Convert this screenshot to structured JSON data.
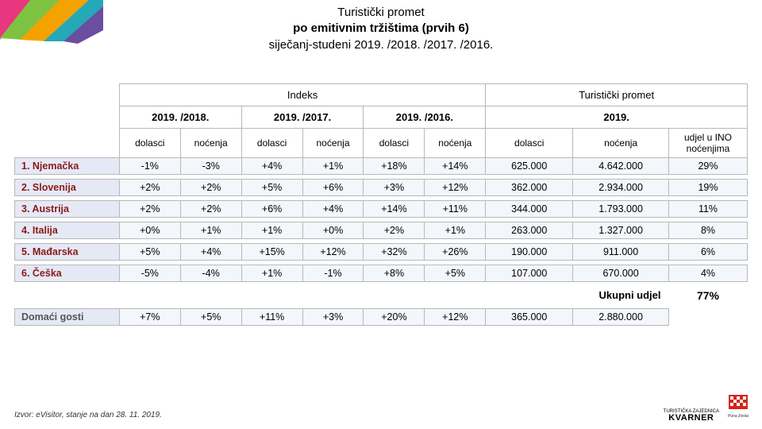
{
  "title": {
    "line1": "Turistički promet",
    "line2": "po emitivnim tržištima (prvih 6)",
    "line3": "siječanj-studeni 2019. /2018. /2017. /2016."
  },
  "headers": {
    "group_index": "Indeks",
    "group_promet": "Turistički promet",
    "year_18": "2019. /2018.",
    "year_17": "2019. /2017.",
    "year_16": "2019. /2016.",
    "year_abs": "2019.",
    "dolasci": "dolasci",
    "nocenja": "noćenja",
    "udjel": "udjel u INO noćenjima"
  },
  "rows": [
    {
      "country": "1. Njemačka",
      "d18": "-1%",
      "n18": "-3%",
      "d17": "+4%",
      "n17": "+1%",
      "d16": "+18%",
      "n16": "+14%",
      "dol": "625.000",
      "noc": "4.642.000",
      "udj": "29%"
    },
    {
      "country": "2. Slovenija",
      "d18": "+2%",
      "n18": "+2%",
      "d17": "+5%",
      "n17": "+6%",
      "d16": "+3%",
      "n16": "+12%",
      "dol": "362.000",
      "noc": "2.934.000",
      "udj": "19%"
    },
    {
      "country": "3. Austrija",
      "d18": "+2%",
      "n18": "+2%",
      "d17": "+6%",
      "n17": "+4%",
      "d16": "+14%",
      "n16": "+11%",
      "dol": "344.000",
      "noc": "1.793.000",
      "udj": "11%"
    },
    {
      "country": "4. Italija",
      "d18": "+0%",
      "n18": "+1%",
      "d17": "+1%",
      "n17": "+0%",
      "d16": "+2%",
      "n16": "+1%",
      "dol": "263.000",
      "noc": "1.327.000",
      "udj": "8%"
    },
    {
      "country": "5. Mađarska",
      "d18": "+5%",
      "n18": "+4%",
      "d17": "+15%",
      "n17": "+12%",
      "d16": "+32%",
      "n16": "+26%",
      "dol": "190.000",
      "noc": "911.000",
      "udj": "6%"
    },
    {
      "country": "6. Češka",
      "d18": "-5%",
      "n18": "-4%",
      "d17": "+1%",
      "n17": "-1%",
      "d16": "+8%",
      "n16": "+5%",
      "dol": "107.000",
      "noc": "670.000",
      "udj": "4%"
    }
  ],
  "total": {
    "label": "Ukupni udjel",
    "value": "77%"
  },
  "domestic": {
    "label": "Domaći gosti",
    "d18": "+7%",
    "n18": "+5%",
    "d17": "+11%",
    "n17": "+3%",
    "d16": "+20%",
    "n16": "+12%",
    "dol": "365.000",
    "noc": "2.880.000"
  },
  "footer": "Izvor: eVisitor, stanje na dan 28. 11. 2019.",
  "logos": {
    "kvarner_top": "TURISTIČKA ZAJEDNICA",
    "kvarner": "KVARNER",
    "hrv_tag": "Puna života"
  },
  "style": {
    "country_color": "#8a1a1a",
    "row_bg": "#e5e9f5",
    "value_bg": "#f3f6fb",
    "border": "#b8b8b8"
  }
}
